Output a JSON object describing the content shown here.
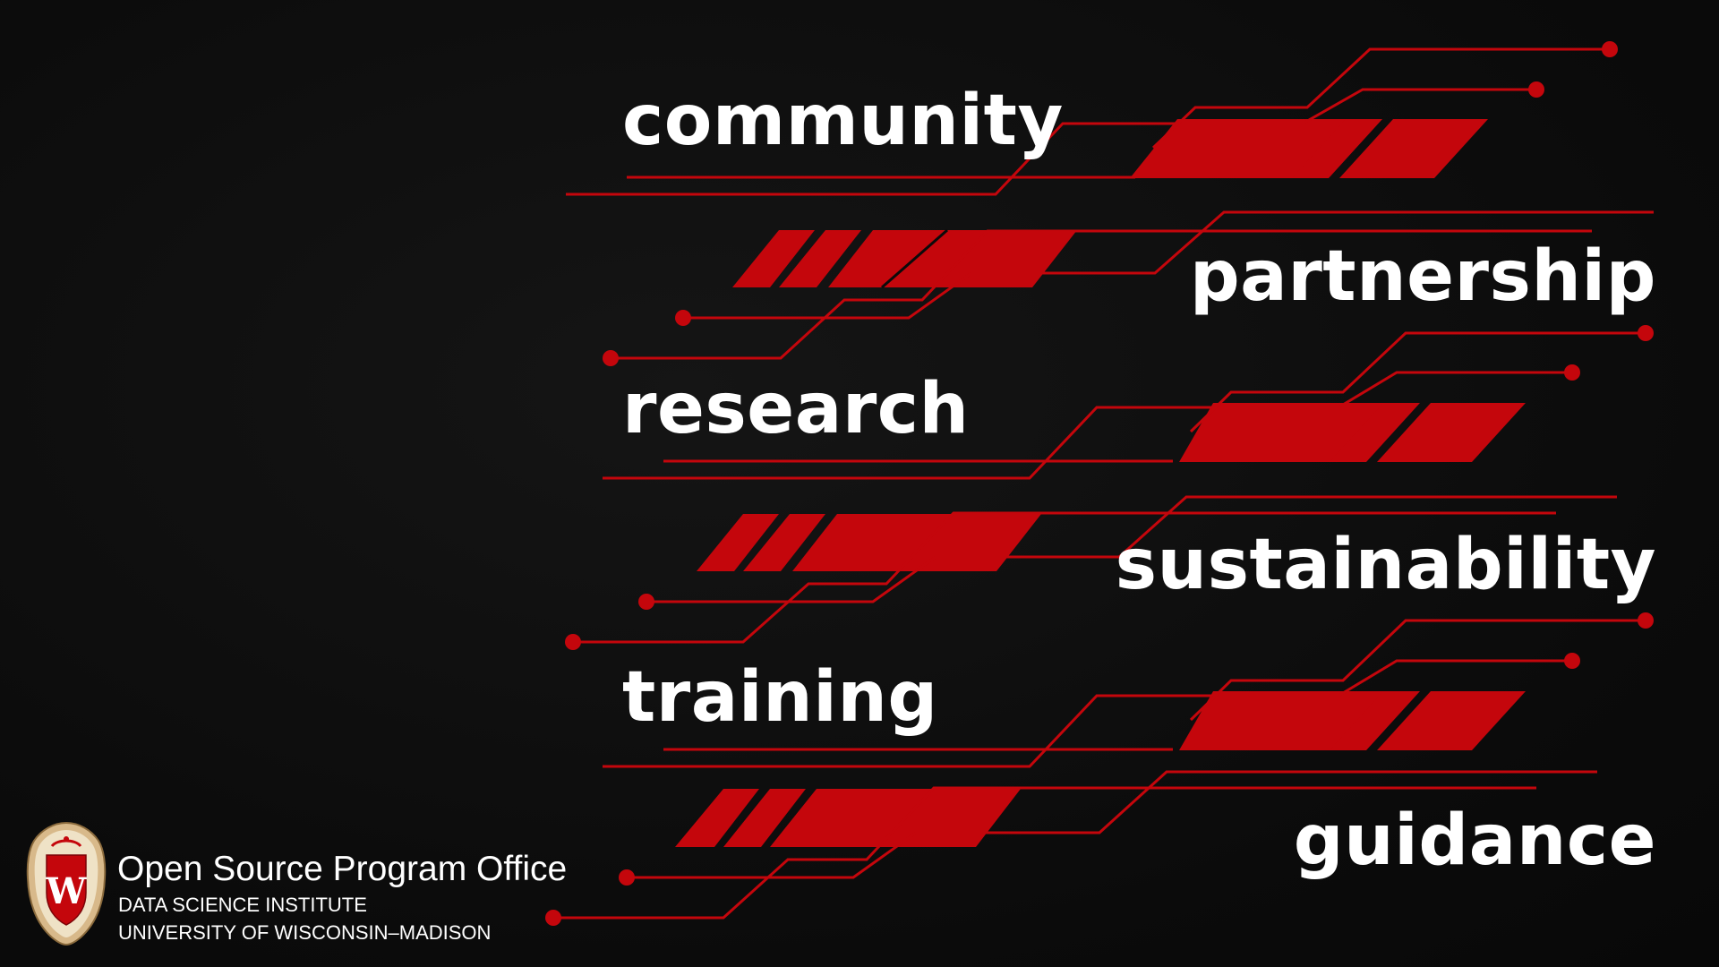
{
  "words": {
    "community": "community",
    "partnership": "partnership",
    "research": "research",
    "sustainability": "sustainability",
    "training": "training",
    "guidance": "guidance"
  },
  "branding": {
    "office_name": "Open Source Program Office",
    "institute": "DATA SCIENCE INSTITUTE",
    "university": "UNIVERSITY OF WISCONSIN–MADISON",
    "crest_letter": "W"
  },
  "colors": {
    "background": "#0b0b0b",
    "accent_red": "#c4060c",
    "text": "#ffffff",
    "crest_gold": "#d8b98a"
  },
  "icons": {
    "crest": "uw-madison-crest-icon",
    "circuit": "circuit-trace-decoration"
  }
}
